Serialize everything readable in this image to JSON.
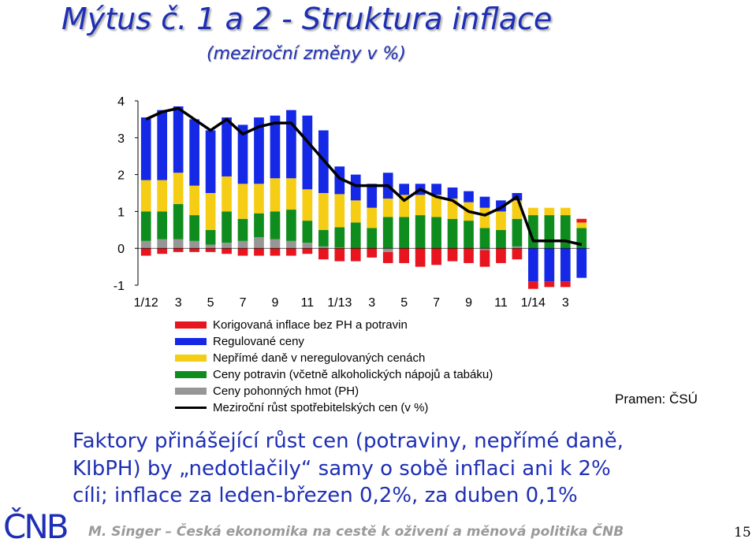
{
  "title": "Mýtus č. 1 a 2 - Struktura inflace",
  "subtitle": "(meziroční změny v %)",
  "source": "Pramen: ČSÚ",
  "body_text": [
    "Faktory přinášející růst cen (potraviny, nepřímé daně,",
    "KIbPH) by „nedotlačily“ samy o sobě inflaci ani k 2%",
    "cíli; inflace za leden-březen 0,2%, za duben 0,1%"
  ],
  "footer": "M. Singer – Česká ekonomika na cestě k oživení a měnová politika ČNB",
  "page_number": "15",
  "logo_text": "ČNB",
  "colors": {
    "title": "#1e2fb4",
    "core": "#e8141e",
    "regulated": "#1428e6",
    "indirect_tax": "#f5cd14",
    "food": "#0f8c1e",
    "fuel": "#969696",
    "cpi_line": "#000000"
  },
  "chart_data": {
    "type": "bar",
    "stacked": true,
    "ylim": [
      -1,
      4
    ],
    "yticks": [
      "4",
      "3",
      "2",
      "1",
      "0",
      "-1"
    ],
    "x_tick_labels": [
      "1/12",
      "3",
      "5",
      "7",
      "9",
      "11",
      "1/13",
      "3",
      "5",
      "7",
      "9",
      "11",
      "1/14",
      "3"
    ],
    "legend": [
      {
        "name": "Korigovaná inflace bez PH a potravin",
        "color": "#e8141e",
        "kind": "bar"
      },
      {
        "name": "Regulované ceny",
        "color": "#1428e6",
        "kind": "bar"
      },
      {
        "name": "Nepřímé daně v neregulovaných cenách",
        "color": "#f5cd14",
        "kind": "bar"
      },
      {
        "name": "Ceny potravin (včetně alkoholických nápojů a tabáku)",
        "color": "#0f8c1e",
        "kind": "bar"
      },
      {
        "name": "Ceny pohonných hmot (PH)",
        "color": "#969696",
        "kind": "bar"
      },
      {
        "name": "Meziroční růst spotřebitelských cen (v %)",
        "color": "#000000",
        "kind": "line"
      }
    ],
    "series": [
      {
        "name": "Ceny pohonných hmot (PH)",
        "values": [
          0.2,
          0.25,
          0.25,
          0.2,
          0.1,
          0.15,
          0.2,
          0.3,
          0.25,
          0.2,
          0.15,
          0.05,
          0.02,
          0,
          0,
          -0.1,
          0,
          0,
          0,
          0,
          0,
          -0.05,
          0,
          0.05,
          0,
          0,
          0,
          0
        ]
      },
      {
        "name": "Ceny potravin (včetně alkoholických nápojů a tabáku)",
        "values": [
          0.8,
          0.75,
          0.95,
          0.7,
          0.4,
          0.85,
          0.6,
          0.65,
          0.75,
          0.85,
          0.6,
          0.45,
          0.55,
          0.7,
          0.55,
          0.85,
          0.85,
          0.9,
          0.85,
          0.8,
          0.75,
          0.55,
          0.5,
          0.75,
          0.9,
          0.9,
          0.9,
          0.55
        ]
      },
      {
        "name": "Nepřímé daně v neregulovaných cenách",
        "values": [
          0.85,
          0.85,
          0.85,
          0.8,
          1.0,
          0.95,
          0.95,
          0.8,
          0.9,
          0.85,
          0.85,
          1.0,
          0.9,
          0.6,
          0.55,
          0.5,
          0.6,
          0.55,
          0.6,
          0.55,
          0.5,
          0.55,
          0.5,
          0.5,
          0.2,
          0.2,
          0.2,
          0.15
        ]
      },
      {
        "name": "Regulované ceny",
        "values": [
          1.7,
          1.9,
          1.8,
          1.8,
          1.7,
          1.6,
          1.6,
          1.8,
          1.7,
          1.85,
          2.0,
          1.7,
          0.75,
          0.7,
          0.65,
          0.7,
          0.3,
          0.3,
          0.3,
          0.3,
          0.3,
          0.3,
          0.3,
          0.2,
          -0.9,
          -0.9,
          -0.9,
          -0.8
        ]
      },
      {
        "name": "Korigovaná inflace bez PH a potravin",
        "values": [
          -0.2,
          -0.15,
          -0.1,
          -0.1,
          -0.1,
          -0.15,
          -0.2,
          -0.2,
          -0.2,
          -0.2,
          -0.15,
          -0.3,
          -0.35,
          -0.35,
          -0.25,
          -0.3,
          -0.4,
          -0.5,
          -0.45,
          -0.35,
          -0.4,
          -0.45,
          -0.4,
          -0.3,
          -0.2,
          -0.15,
          -0.15,
          0.1
        ]
      },
      {
        "name": "Meziroční růst spotřebitelských cen (v %)",
        "type": "line",
        "values": [
          3.5,
          3.7,
          3.8,
          3.5,
          3.2,
          3.5,
          3.1,
          3.3,
          3.4,
          3.4,
          2.9,
          2.4,
          1.9,
          1.7,
          1.7,
          1.7,
          1.3,
          1.6,
          1.4,
          1.3,
          1.0,
          0.9,
          1.1,
          1.4,
          0.2,
          0.2,
          0.2,
          0.1
        ]
      }
    ]
  }
}
